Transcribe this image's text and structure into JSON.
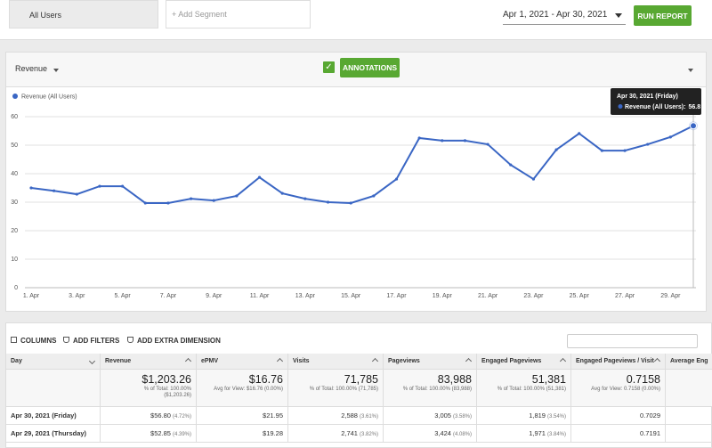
{
  "toolbar": {
    "segment": "All Users",
    "add_segment": "+ Add Segment",
    "date_range": "Apr 1, 2021 - Apr 30, 2021",
    "run_report": "RUN REPORT"
  },
  "chart_panel": {
    "metric": "Revenue",
    "annotations": "ANNOTATIONS"
  },
  "chart_data": {
    "type": "line",
    "categories": [
      "1. Apr",
      null,
      "3. Apr",
      null,
      "5. Apr",
      null,
      "7. Apr",
      null,
      "9. Apr",
      null,
      "11. Apr",
      null,
      "13. Apr",
      null,
      "15. Apr",
      null,
      "17. Apr",
      null,
      "19. Apr",
      null,
      "21. Apr",
      null,
      "23. Apr",
      null,
      "25. Apr",
      null,
      "27. Apr",
      null,
      "29. Apr",
      null
    ],
    "series": [
      {
        "name": "Revenue (All Users)",
        "color": "#3a66c4",
        "values": [
          35,
          34,
          32.8,
          35.6,
          35.6,
          29.7,
          29.7,
          31.2,
          30.6,
          32.2,
          38.7,
          33.1,
          31.2,
          30,
          29.7,
          32.2,
          38.1,
          52.5,
          51.6,
          51.6,
          50.3,
          43.1,
          38.1,
          48.4,
          54.1,
          48.1,
          48.1,
          50.3,
          52.85,
          56.8
        ]
      }
    ],
    "ylim": [
      0,
      60
    ],
    "yticks": [
      0,
      10,
      20,
      30,
      40,
      50,
      60
    ],
    "grid": true,
    "tooltip": {
      "title": "Apr 30, 2021 (Friday)",
      "label": "Revenue (All Users):"
    }
  },
  "table": {
    "tools": [
      "COLUMNS",
      "ADD FILTERS",
      "ADD EXTRA DIMENSION"
    ],
    "columns": [
      "Day",
      "Revenue",
      "ePMV",
      "Visits",
      "Pageviews",
      "Engaged Pageviews",
      "Engaged Pageviews / Visit",
      "Average Eng"
    ],
    "totals": [
      null,
      {
        "main": "$1,203.26",
        "sub": [
          "% of Total: 100.00%",
          "($1,203.26)"
        ]
      },
      {
        "main": "$16.76",
        "sub": [
          "Avg for View: $16.76 (0.00%)"
        ]
      },
      {
        "main": "71,785",
        "sub": [
          "% of Total: 100.00% (71,785)"
        ]
      },
      {
        "main": "83,988",
        "sub": [
          "% of Total: 100.00% (83,988)"
        ]
      },
      {
        "main": "51,381",
        "sub": [
          "% of Total: 100.00% (51,381)"
        ]
      },
      {
        "main": "0.7158",
        "sub": [
          "Avg for View: 0.7158 (0.00%)"
        ]
      },
      null
    ],
    "rows": [
      [
        {
          "main": "Apr 30, 2021 (Friday)"
        },
        {
          "main": "$56.80",
          "pct": "(4.72%)"
        },
        {
          "main": "$21.95"
        },
        {
          "main": "2,588",
          "pct": "(3.61%)"
        },
        {
          "main": "3,005",
          "pct": "(3.58%)"
        },
        {
          "main": "1,819",
          "pct": "(3.54%)"
        },
        {
          "main": "0.7029"
        },
        null
      ],
      [
        {
          "main": "Apr 29, 2021 (Thursday)"
        },
        {
          "main": "$52.85",
          "pct": "(4.39%)"
        },
        {
          "main": "$19.28"
        },
        {
          "main": "2,741",
          "pct": "(3.82%)"
        },
        {
          "main": "3,424",
          "pct": "(4.08%)"
        },
        {
          "main": "1,971",
          "pct": "(3.84%)"
        },
        {
          "main": "0.7191"
        },
        null
      ]
    ]
  }
}
